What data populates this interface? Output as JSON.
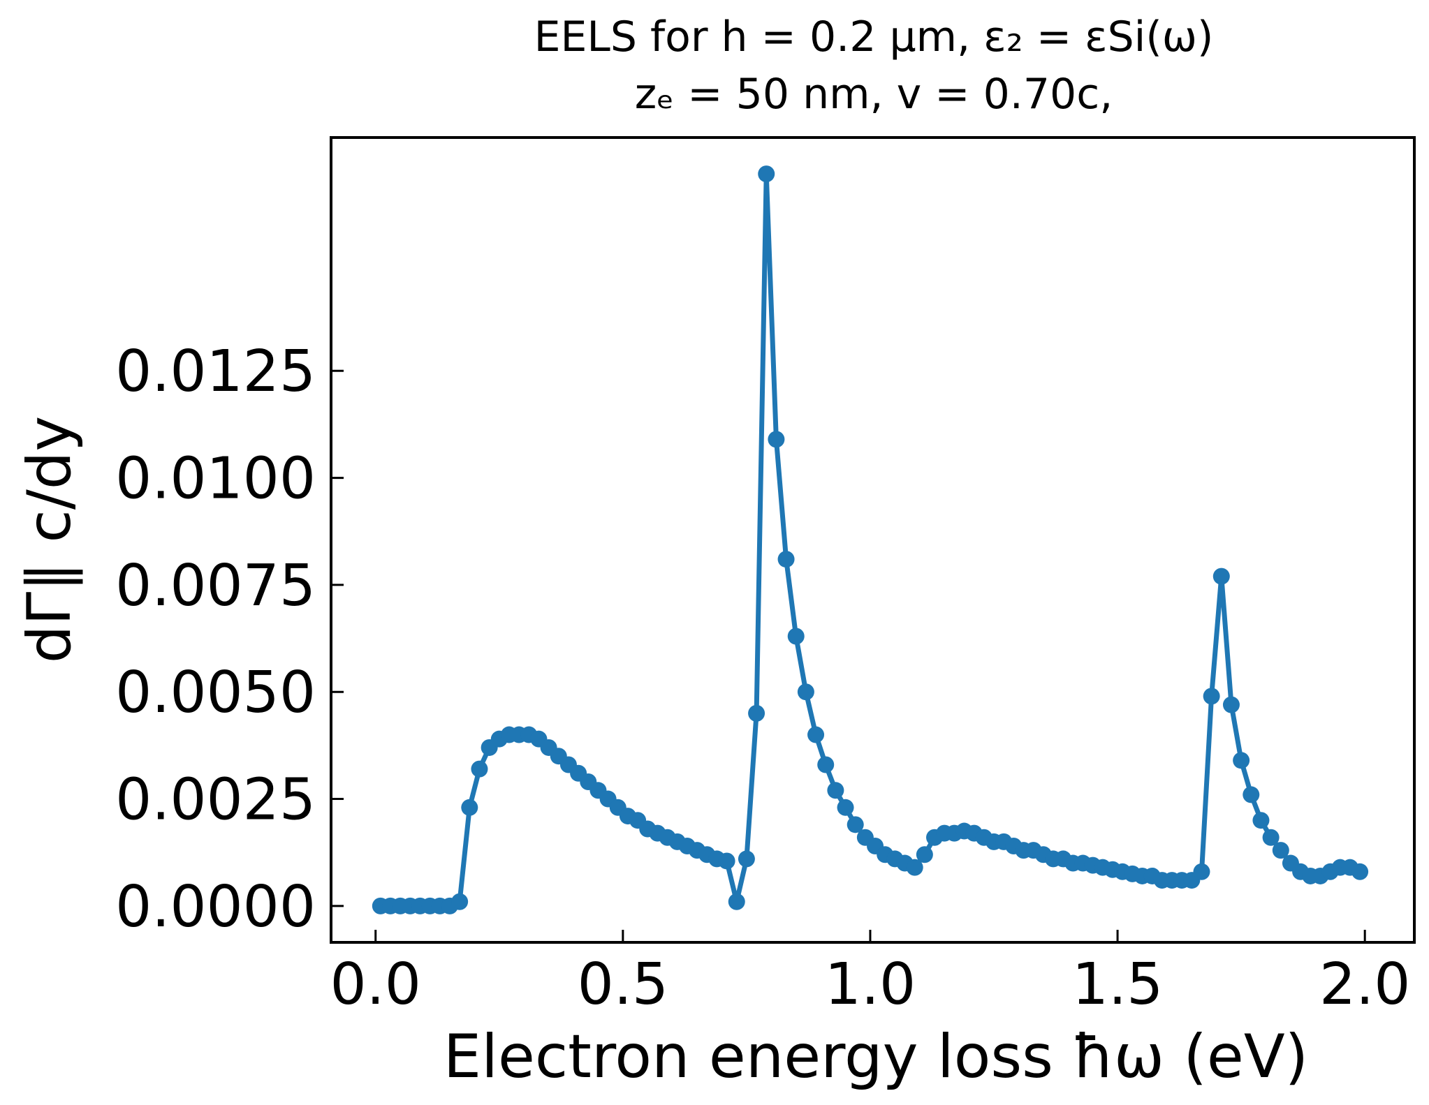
{
  "chart_data": {
    "type": "line",
    "title_lines": [
      "EELS for h = 0.2 μm, ε₂ = εSi(ω)",
      "zₑ = 50 nm, v = 0.70c,"
    ],
    "xlabel": "Electron energy loss ħω (eV)",
    "ylabel": "dΓ∥ c/dy",
    "xlim": [
      -0.09,
      2.1
    ],
    "ylim": [
      -0.00085,
      0.01795
    ],
    "xticks": [
      0.0,
      0.5,
      1.0,
      1.5,
      2.0
    ],
    "xtick_labels": [
      "0.0",
      "0.5",
      "1.0",
      "1.5",
      "2.0"
    ],
    "yticks": [
      0.0,
      0.0025,
      0.005,
      0.0075,
      0.01,
      0.0125
    ],
    "ytick_labels": [
      "0.0000",
      "0.0025",
      "0.0050",
      "0.0075",
      "0.0100",
      "0.0125"
    ],
    "grid": false,
    "color": "#1f77b4",
    "series": [
      {
        "marker": "circle",
        "x": [
          0.01,
          0.03,
          0.05,
          0.07,
          0.09,
          0.11,
          0.13,
          0.15,
          0.17,
          0.19,
          0.21,
          0.23,
          0.25,
          0.27,
          0.29,
          0.31,
          0.33,
          0.35,
          0.37,
          0.39,
          0.41,
          0.43,
          0.45,
          0.47,
          0.49,
          0.51,
          0.53,
          0.55,
          0.57,
          0.59,
          0.61,
          0.63,
          0.65,
          0.67,
          0.69,
          0.71,
          0.73,
          0.75,
          0.77,
          0.79,
          0.81,
          0.83,
          0.85,
          0.87,
          0.89,
          0.91,
          0.93,
          0.95,
          0.97,
          0.99,
          1.01,
          1.03,
          1.05,
          1.07,
          1.09,
          1.11,
          1.13,
          1.15,
          1.17,
          1.19,
          1.21,
          1.23,
          1.25,
          1.27,
          1.29,
          1.31,
          1.33,
          1.35,
          1.37,
          1.39,
          1.41,
          1.43,
          1.45,
          1.47,
          1.49,
          1.51,
          1.53,
          1.55,
          1.57,
          1.59,
          1.61,
          1.63,
          1.65,
          1.67,
          1.69,
          1.71,
          1.73,
          1.75,
          1.77,
          1.79,
          1.81,
          1.83,
          1.85,
          1.87,
          1.89,
          1.91,
          1.93,
          1.95,
          1.97,
          1.99
        ],
        "y": [
          0.0,
          0.0,
          0.0,
          0.0,
          0.0,
          0.0,
          0.0,
          0.0,
          0.0001,
          0.0023,
          0.0032,
          0.0037,
          0.0039,
          0.004,
          0.004,
          0.004,
          0.0039,
          0.0037,
          0.0035,
          0.0033,
          0.0031,
          0.0029,
          0.0027,
          0.0025,
          0.0023,
          0.0021,
          0.002,
          0.0018,
          0.0017,
          0.0016,
          0.0015,
          0.0014,
          0.0013,
          0.0012,
          0.0011,
          0.00105,
          0.0001,
          0.0011,
          0.0045,
          0.0171,
          0.0109,
          0.0081,
          0.0063,
          0.005,
          0.004,
          0.0033,
          0.0027,
          0.0023,
          0.0019,
          0.0016,
          0.0014,
          0.0012,
          0.0011,
          0.001,
          0.0009,
          0.0012,
          0.0016,
          0.0017,
          0.0017,
          0.00175,
          0.0017,
          0.0016,
          0.0015,
          0.0015,
          0.0014,
          0.0013,
          0.0013,
          0.0012,
          0.0011,
          0.0011,
          0.001,
          0.001,
          0.00095,
          0.0009,
          0.00085,
          0.0008,
          0.00075,
          0.0007,
          0.0007,
          0.0006,
          0.0006,
          0.0006,
          0.0006,
          0.0008,
          0.0049,
          0.0077,
          0.0047,
          0.0034,
          0.0026,
          0.002,
          0.0016,
          0.0013,
          0.001,
          0.0008,
          0.0007,
          0.0007,
          0.0008,
          0.0009,
          0.0009,
          0.0008
        ]
      }
    ]
  }
}
